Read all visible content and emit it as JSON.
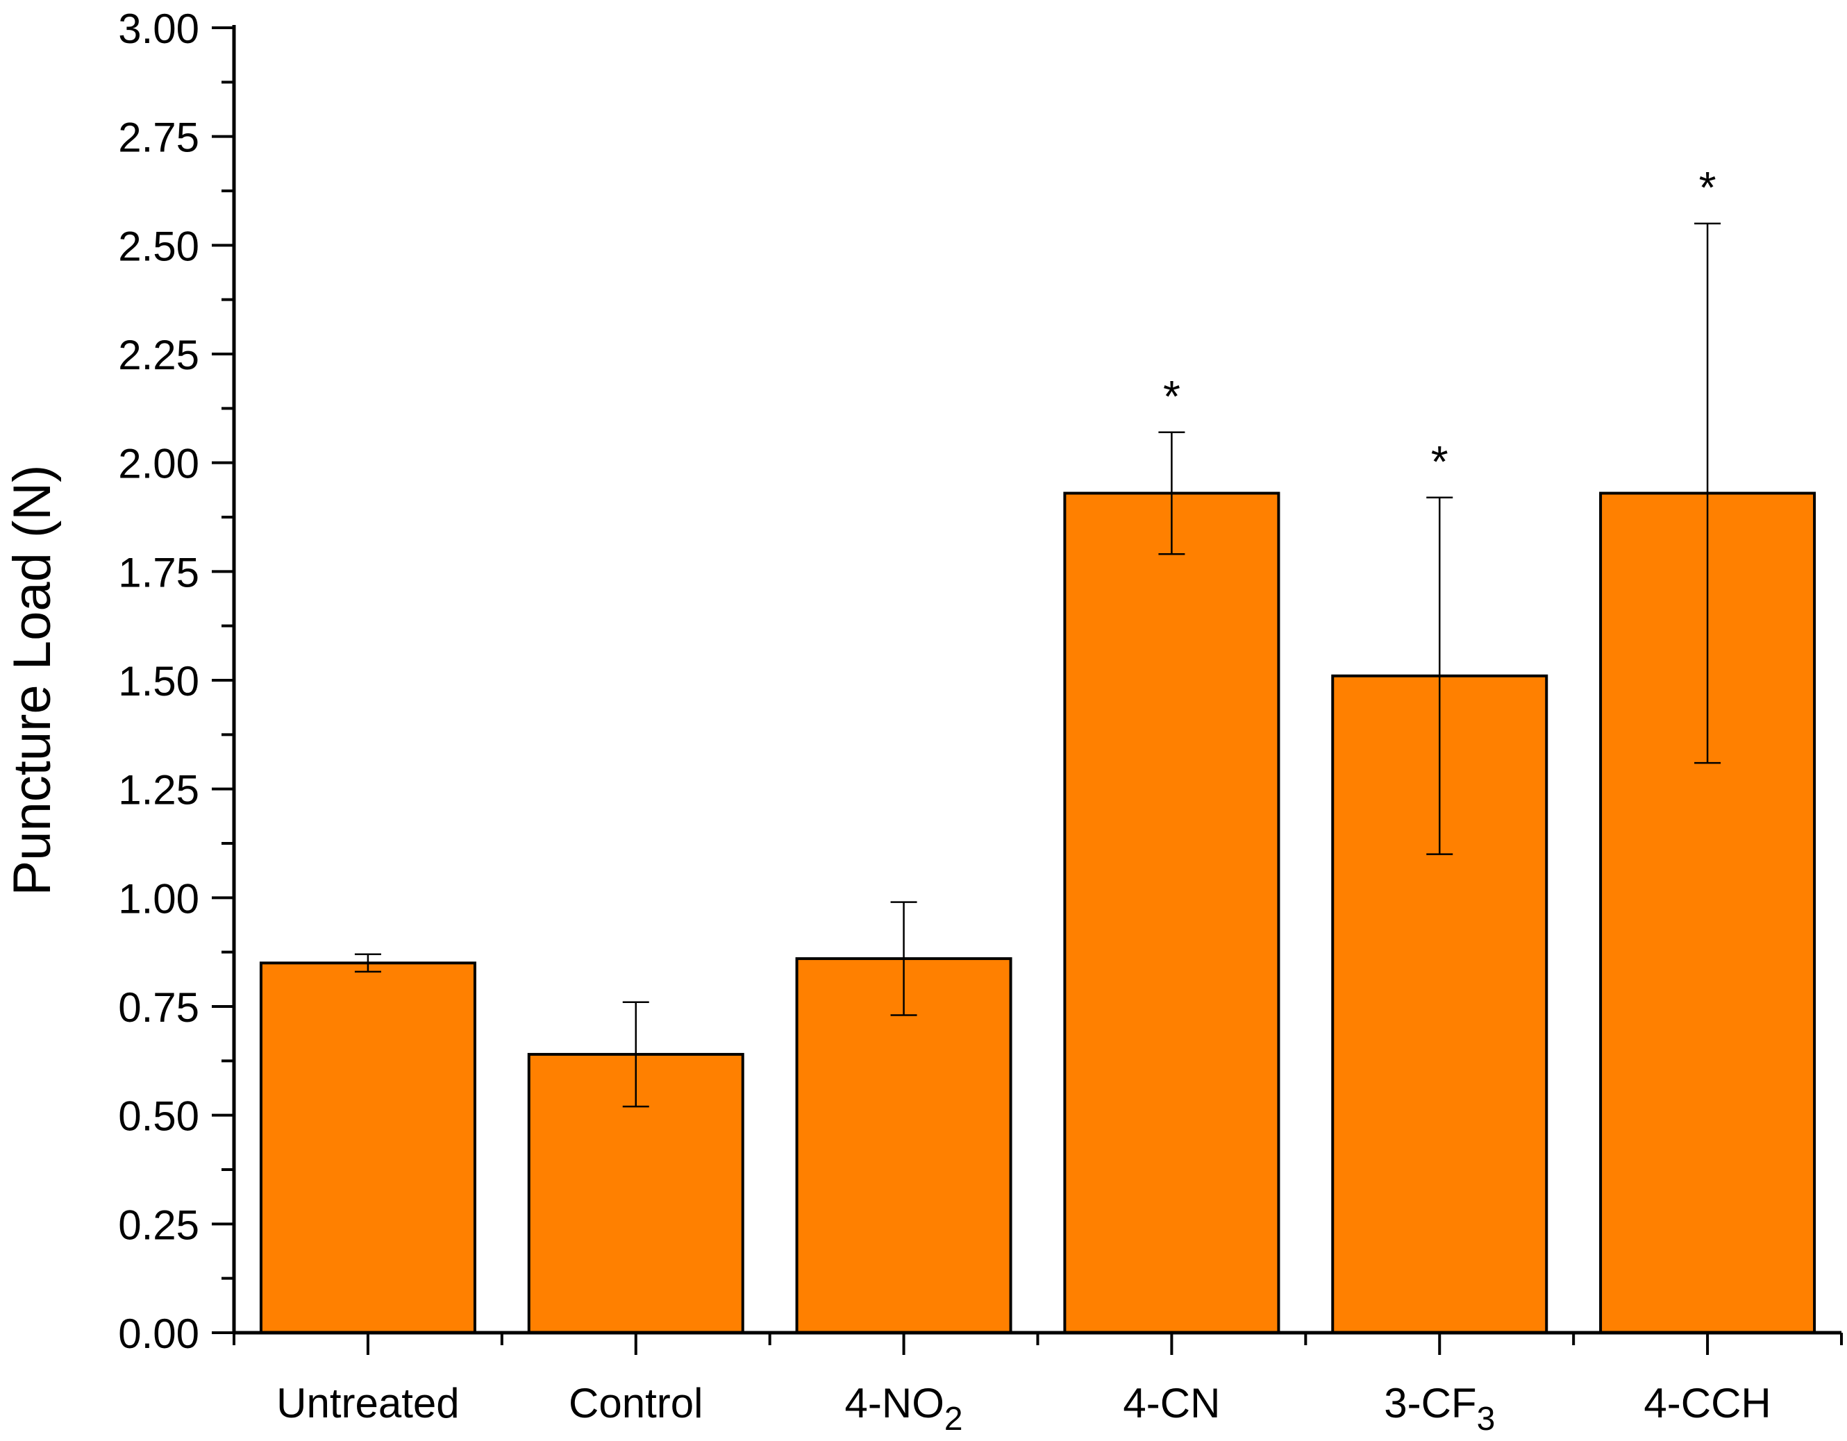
{
  "chart_data": {
    "type": "bar",
    "title": "",
    "xlabel": "",
    "ylabel": "Puncture Load (N)",
    "ylim": [
      0,
      3
    ],
    "yticks": [
      "0.00",
      "0.25",
      "0.50",
      "0.75",
      "1.00",
      "1.25",
      "1.50",
      "1.75",
      "2.00",
      "2.25",
      "2.50",
      "2.75",
      "3.00"
    ],
    "categories": [
      {
        "main": "Untreated",
        "sub": ""
      },
      {
        "main": "Control",
        "sub": ""
      },
      {
        "main": "4-NO",
        "sub": "2"
      },
      {
        "main": "4-CN",
        "sub": ""
      },
      {
        "main": "3-CF",
        "sub": "3"
      },
      {
        "main": "4-CCH",
        "sub": ""
      }
    ],
    "values": [
      0.85,
      0.64,
      0.86,
      1.93,
      1.51,
      1.93
    ],
    "errors": [
      {
        "low": 0.83,
        "high": 0.87
      },
      {
        "low": 0.52,
        "high": 0.76
      },
      {
        "low": 0.73,
        "high": 0.99
      },
      {
        "low": 1.79,
        "high": 2.07
      },
      {
        "low": 1.1,
        "high": 1.92
      },
      {
        "low": 1.31,
        "high": 2.55
      }
    ],
    "significance": [
      "",
      "",
      "",
      "*",
      "*",
      "*"
    ],
    "bar_color": "#FF8000",
    "grid": false
  }
}
